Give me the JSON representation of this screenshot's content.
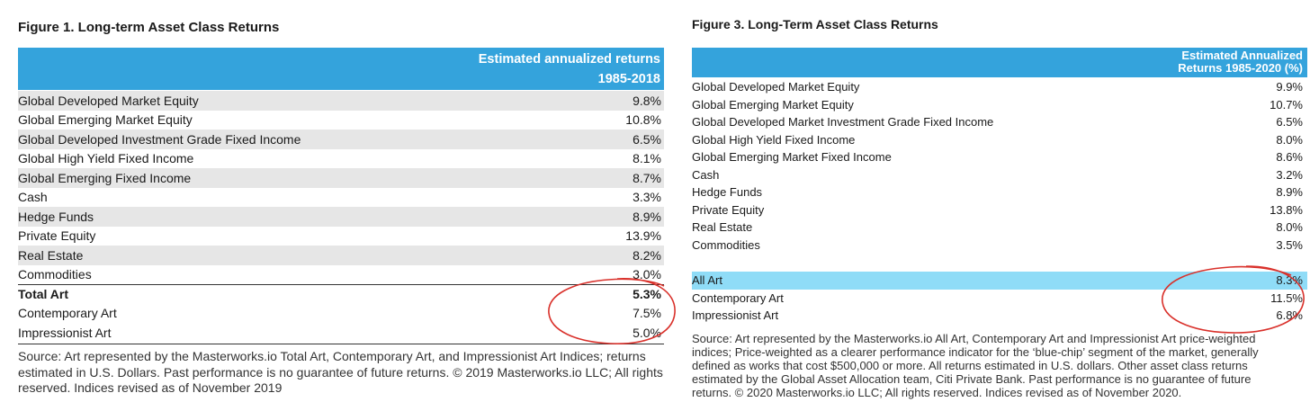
{
  "figure1": {
    "title": "Figure 1. Long-term Asset Class Returns",
    "header_line1": "Estimated annualized returns",
    "header_line2": "1985-2018",
    "rows": [
      {
        "label": "Global Developed Market Equity",
        "value": "9.8%"
      },
      {
        "label": "Global Emerging Market Equity",
        "value": "10.8%"
      },
      {
        "label": "Global Developed Investment Grade Fixed Income",
        "value": "6.5%"
      },
      {
        "label": "Global High Yield Fixed Income",
        "value": "8.1%"
      },
      {
        "label": "Global Emerging Fixed Income",
        "value": "8.7%"
      },
      {
        "label": "Cash",
        "value": "3.3%"
      },
      {
        "label": "Hedge Funds",
        "value": "8.9%"
      },
      {
        "label": "Private Equity",
        "value": "13.9%"
      },
      {
        "label": "Real Estate",
        "value": "8.2%"
      },
      {
        "label": "Commodities",
        "value": "3.0%"
      },
      {
        "label": "Total Art",
        "value": "5.3%"
      },
      {
        "label": "Contemporary Art",
        "value": "7.5%"
      },
      {
        "label": "Impressionist Art",
        "value": "5.0%"
      }
    ],
    "source": "Source: Art represented by the Masterworks.io Total Art, Contemporary Art, and Impressionist Art Indices; returns estimated in U.S. Dollars. Past performance is no guarantee of future returns. © 2019 Masterworks.io LLC; All rights reserved. Indices revised as of November 2019"
  },
  "figure3": {
    "title": "Figure 3. Long-Term Asset Class Returns",
    "header_line1": "Estimated Annualized",
    "header_line2": "Returns 1985-2020 (%)",
    "rows": [
      {
        "label": "Global Developed Market Equity",
        "value": "9.9%"
      },
      {
        "label": "Global Emerging Market Equity",
        "value": "10.7%"
      },
      {
        "label": "Global Developed Market Investment Grade Fixed Income",
        "value": "6.5%"
      },
      {
        "label": "Global High Yield Fixed Income",
        "value": "8.0%"
      },
      {
        "label": "Global Emerging Market Fixed Income",
        "value": "8.6%"
      },
      {
        "label": "Cash",
        "value": "3.2%"
      },
      {
        "label": "Hedge Funds",
        "value": "8.9%"
      },
      {
        "label": "Private Equity",
        "value": "13.8%"
      },
      {
        "label": "Real Estate",
        "value": "8.0%"
      },
      {
        "label": "Commodities",
        "value": "3.5%"
      }
    ],
    "art_rows": [
      {
        "label": "All Art",
        "value": "8.3%"
      },
      {
        "label": "Contemporary Art",
        "value": "11.5%"
      },
      {
        "label": "Impressionist Art",
        "value": "6.8%"
      }
    ],
    "source": "Source: Art represented by the Masterworks.io All Art, Contemporary Art and Impressionist Art price-weighted indices; Price-weighted as a clearer performance indicator for the ‘blue-chip’ segment of the market, generally defined as works that cost $500,000 or more. All returns estimated in U.S. dollars. Other asset class returns estimated by the Global Asset Allocation team, Citi Private Bank. Past performance is no guarantee of future returns. © 2020 Masterworks.io LLC; All rights reserved. Indices revised as of November 2020."
  },
  "colors": {
    "header_blue": "#34a3dc",
    "highlight_cyan": "#8fdcf7",
    "row_shade": "#e6e6e6",
    "annotation_red": "#d9312b"
  }
}
